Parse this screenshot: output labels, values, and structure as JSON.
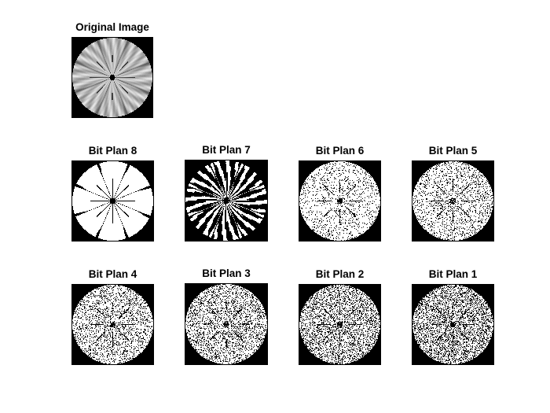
{
  "figure": {
    "background": "#ffffff",
    "panels": [
      {
        "id": "original",
        "title": "Original Image",
        "kind": "grayscale"
      },
      {
        "id": "bit8",
        "title": "Bit Plan 8",
        "kind": "bitplane",
        "bit": 8
      },
      {
        "id": "bit7",
        "title": "Bit Plan 7",
        "kind": "bitplane",
        "bit": 7
      },
      {
        "id": "bit6",
        "title": "Bit Plan 6",
        "kind": "bitplane",
        "bit": 6
      },
      {
        "id": "bit5",
        "title": "Bit Plan 5",
        "kind": "bitplane",
        "bit": 5
      },
      {
        "id": "bit4",
        "title": "Bit Plan 4",
        "kind": "bitplane",
        "bit": 4
      },
      {
        "id": "bit3",
        "title": "Bit Plan 3",
        "kind": "bitplane",
        "bit": 3
      },
      {
        "id": "bit2",
        "title": "Bit Plan 2",
        "kind": "bitplane",
        "bit": 2
      },
      {
        "id": "bit1",
        "title": "Bit Plan 1",
        "kind": "bitplane",
        "bit": 1
      }
    ]
  }
}
